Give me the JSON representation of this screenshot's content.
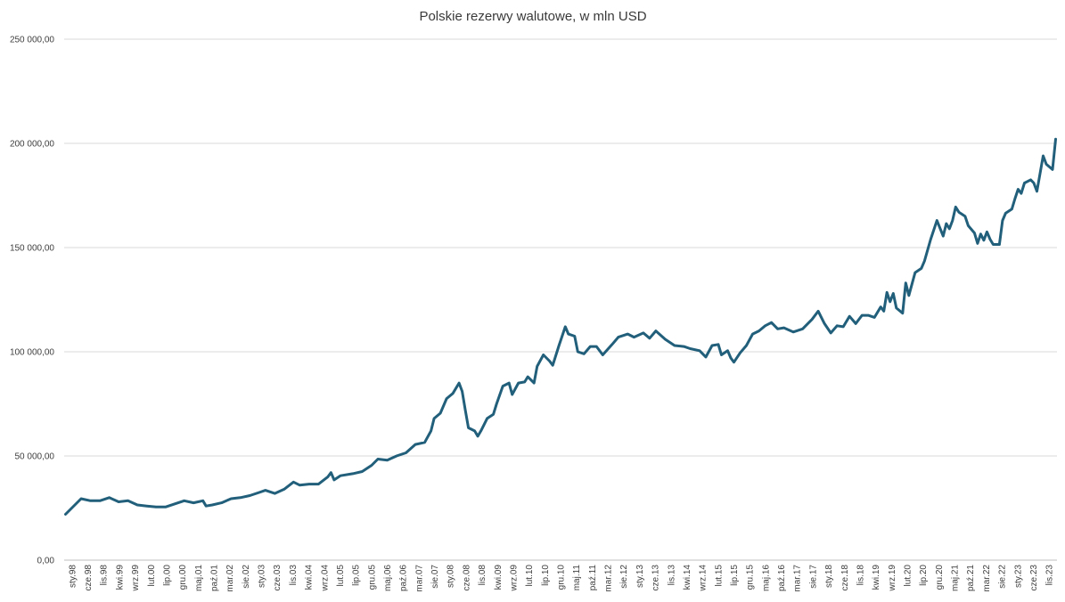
{
  "chart_data": {
    "type": "line",
    "title": "Polskie rezerwy walutowe, w mln USD",
    "xlabel": "",
    "ylabel": "",
    "ylim": [
      0,
      250000
    ],
    "yticks": [
      0,
      50000,
      100000,
      150000,
      200000,
      250000
    ],
    "ytick_labels": [
      "0,00",
      "50 000,00",
      "100 000,00",
      "150 000,00",
      "200 000,00",
      "250 000,00"
    ],
    "grid": "horizontal",
    "legend": "none",
    "x_tick_labels": [
      "sty.98",
      "cze.98",
      "lis.98",
      "kwi.99",
      "wrz.99",
      "lut.00",
      "lip.00",
      "gru.00",
      "maj.01",
      "paź.01",
      "mar.02",
      "sie.02",
      "sty.03",
      "cze.03",
      "lis.03",
      "kwi.04",
      "wrz.04",
      "lut.05",
      "lip.05",
      "gru.05",
      "maj.06",
      "paź.06",
      "mar.07",
      "sie.07",
      "sty.08",
      "cze.08",
      "lis.08",
      "kwi.09",
      "wrz.09",
      "lut.10",
      "lip.10",
      "gru.10",
      "maj.11",
      "paź.11",
      "mar.12",
      "sie.12",
      "sty.13",
      "cze.13",
      "lis.13",
      "kwi.14",
      "wrz.14",
      "lut.15",
      "lip.15",
      "gru.15",
      "maj.16",
      "paź.16",
      "mar.17",
      "sie.17",
      "sty.18",
      "cze.18",
      "lis.18",
      "kwi.19",
      "wrz.19",
      "lut.20",
      "lip.20",
      "gru.20",
      "maj.21",
      "paź.21",
      "mar.22",
      "sie.22",
      "sty.23",
      "cze.23",
      "lis.23"
    ],
    "series": [
      {
        "color": "#215f7a",
        "points": [
          [
            "1998-01",
            22000
          ],
          [
            "1998-03",
            25000
          ],
          [
            "1998-06",
            29500
          ],
          [
            "1998-09",
            28500
          ],
          [
            "1998-12",
            28500
          ],
          [
            "1999-03",
            30000
          ],
          [
            "1999-06",
            28000
          ],
          [
            "1999-09",
            28500
          ],
          [
            "1999-12",
            26500
          ],
          [
            "2000-03",
            26000
          ],
          [
            "2000-06",
            25500
          ],
          [
            "2000-09",
            25500
          ],
          [
            "2000-12",
            27000
          ],
          [
            "2001-03",
            28500
          ],
          [
            "2001-06",
            27500
          ],
          [
            "2001-09",
            28500
          ],
          [
            "2001-10",
            26000
          ],
          [
            "2001-12",
            26500
          ],
          [
            "2002-03",
            27500
          ],
          [
            "2002-06",
            29500
          ],
          [
            "2002-09",
            30000
          ],
          [
            "2002-12",
            31000
          ],
          [
            "2003-03",
            32500
          ],
          [
            "2003-05",
            33500
          ],
          [
            "2003-08",
            32000
          ],
          [
            "2003-11",
            34000
          ],
          [
            "2004-02",
            37500
          ],
          [
            "2004-04",
            36000
          ],
          [
            "2004-07",
            36500
          ],
          [
            "2004-10",
            36500
          ],
          [
            "2005-01",
            40000
          ],
          [
            "2005-02",
            42000
          ],
          [
            "2005-03",
            38500
          ],
          [
            "2005-05",
            40500
          ],
          [
            "2005-09",
            41500
          ],
          [
            "2005-12",
            42500
          ],
          [
            "2006-03",
            45500
          ],
          [
            "2006-05",
            48500
          ],
          [
            "2006-08",
            48000
          ],
          [
            "2006-11",
            50000
          ],
          [
            "2007-02",
            51500
          ],
          [
            "2007-05",
            55500
          ],
          [
            "2007-08",
            56500
          ],
          [
            "2007-10",
            62000
          ],
          [
            "2007-11",
            68000
          ],
          [
            "2008-01",
            70500
          ],
          [
            "2008-03",
            77500
          ],
          [
            "2008-05",
            80000
          ],
          [
            "2008-07",
            85000
          ],
          [
            "2008-08",
            81000
          ],
          [
            "2008-09",
            72000
          ],
          [
            "2008-10",
            63500
          ],
          [
            "2008-12",
            62000
          ],
          [
            "2009-01",
            59500
          ],
          [
            "2009-02",
            62000
          ],
          [
            "2009-04",
            68000
          ],
          [
            "2009-06",
            70000
          ],
          [
            "2009-07",
            75000
          ],
          [
            "2009-09",
            83500
          ],
          [
            "2009-11",
            85000
          ],
          [
            "2009-12",
            79500
          ],
          [
            "2010-02",
            85000
          ],
          [
            "2010-04",
            85500
          ],
          [
            "2010-05",
            88000
          ],
          [
            "2010-07",
            85000
          ],
          [
            "2010-08",
            93000
          ],
          [
            "2010-10",
            98500
          ],
          [
            "2010-12",
            95500
          ],
          [
            "2011-01",
            93500
          ],
          [
            "2011-03",
            103000
          ],
          [
            "2011-05",
            112000
          ],
          [
            "2011-06",
            108500
          ],
          [
            "2011-08",
            107500
          ],
          [
            "2011-09",
            100000
          ],
          [
            "2011-11",
            99000
          ],
          [
            "2012-01",
            102500
          ],
          [
            "2012-03",
            102500
          ],
          [
            "2012-05",
            98500
          ],
          [
            "2012-08",
            103500
          ],
          [
            "2012-10",
            107000
          ],
          [
            "2013-01",
            108500
          ],
          [
            "2013-03",
            107000
          ],
          [
            "2013-06",
            109000
          ],
          [
            "2013-08",
            106500
          ],
          [
            "2013-10",
            110000
          ],
          [
            "2014-01",
            106000
          ],
          [
            "2014-04",
            103000
          ],
          [
            "2014-07",
            102500
          ],
          [
            "2014-09",
            101500
          ],
          [
            "2014-12",
            100500
          ],
          [
            "2015-02",
            97500
          ],
          [
            "2015-04",
            103000
          ],
          [
            "2015-06",
            103500
          ],
          [
            "2015-07",
            98500
          ],
          [
            "2015-09",
            100500
          ],
          [
            "2015-10",
            97000
          ],
          [
            "2015-11",
            95000
          ],
          [
            "2016-01",
            99500
          ],
          [
            "2016-03",
            103000
          ],
          [
            "2016-05",
            108500
          ],
          [
            "2016-07",
            110000
          ],
          [
            "2016-09",
            112500
          ],
          [
            "2016-11",
            114000
          ],
          [
            "2017-01",
            111000
          ],
          [
            "2017-03",
            111500
          ],
          [
            "2017-06",
            109500
          ],
          [
            "2017-09",
            111000
          ],
          [
            "2017-12",
            115500
          ],
          [
            "2018-02",
            119500
          ],
          [
            "2018-04",
            113500
          ],
          [
            "2018-06",
            109000
          ],
          [
            "2018-08",
            112500
          ],
          [
            "2018-10",
            112000
          ],
          [
            "2018-12",
            117000
          ],
          [
            "2019-02",
            113500
          ],
          [
            "2019-04",
            117500
          ],
          [
            "2019-06",
            117500
          ],
          [
            "2019-08",
            116500
          ],
          [
            "2019-10",
            121500
          ],
          [
            "2019-11",
            119500
          ],
          [
            "2019-12",
            128500
          ],
          [
            "2020-01",
            124000
          ],
          [
            "2020-02",
            128000
          ],
          [
            "2020-03",
            121000
          ],
          [
            "2020-05",
            118500
          ],
          [
            "2020-06",
            133000
          ],
          [
            "2020-07",
            127000
          ],
          [
            "2020-09",
            138000
          ],
          [
            "2020-11",
            140000
          ],
          [
            "2020-12",
            143500
          ],
          [
            "2021-02",
            154000
          ],
          [
            "2021-04",
            163000
          ],
          [
            "2021-06",
            155500
          ],
          [
            "2021-07",
            161500
          ],
          [
            "2021-08",
            159000
          ],
          [
            "2021-09",
            163000
          ],
          [
            "2021-10",
            169500
          ],
          [
            "2021-11",
            167000
          ],
          [
            "2022-01",
            165000
          ],
          [
            "2022-02",
            160500
          ],
          [
            "2022-04",
            157000
          ],
          [
            "2022-05",
            152000
          ],
          [
            "2022-06",
            156500
          ],
          [
            "2022-07",
            153500
          ],
          [
            "2022-08",
            157500
          ],
          [
            "2022-09",
            154000
          ],
          [
            "2022-10",
            151500
          ],
          [
            "2022-12",
            151500
          ],
          [
            "2023-01",
            163000
          ],
          [
            "2023-02",
            166500
          ],
          [
            "2023-04",
            168500
          ],
          [
            "2023-05",
            173500
          ],
          [
            "2023-06",
            178000
          ],
          [
            "2023-07",
            176000
          ],
          [
            "2023-08",
            181000
          ],
          [
            "2023-10",
            182500
          ],
          [
            "2023-11",
            181000
          ],
          [
            "2023-12",
            177000
          ],
          [
            "2024-02",
            194000
          ],
          [
            "2024-03",
            190000
          ],
          [
            "2024-05",
            187500
          ],
          [
            "2024-06",
            202000
          ]
        ]
      }
    ]
  }
}
